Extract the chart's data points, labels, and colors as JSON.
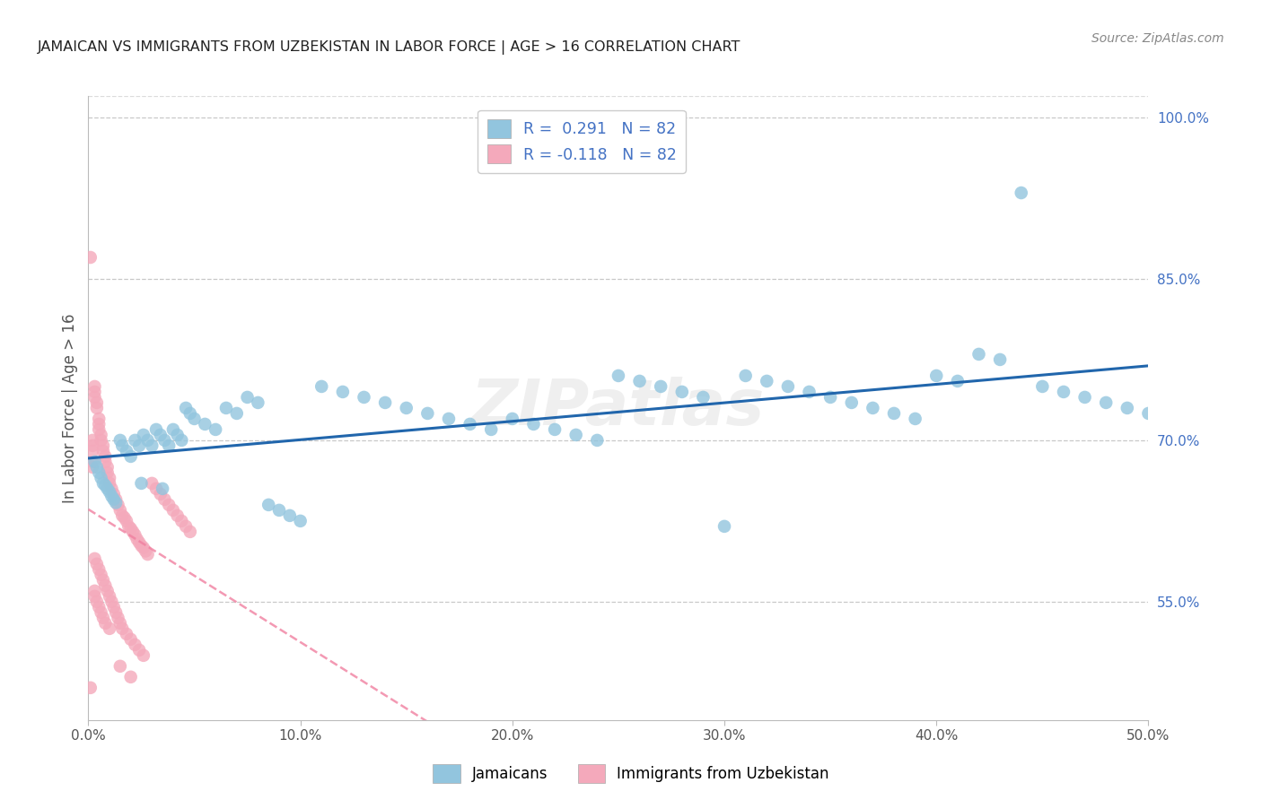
{
  "title": "JAMAICAN VS IMMIGRANTS FROM UZBEKISTAN IN LABOR FORCE | AGE > 16 CORRELATION CHART",
  "source": "Source: ZipAtlas.com",
  "ylabel": "In Labor Force | Age > 16",
  "xlim": [
    0.0,
    0.5
  ],
  "ylim": [
    0.44,
    1.02
  ],
  "r_jamaican": 0.291,
  "n_jamaican": 82,
  "r_uzbekistan": -0.118,
  "n_uzbekistan": 82,
  "legend_label_blue": "Jamaicans",
  "legend_label_pink": "Immigrants from Uzbekistan",
  "dot_color_blue": "#92C5DE",
  "dot_color_pink": "#F4A9BB",
  "line_color_blue": "#2166AC",
  "line_color_pink": "#F4A9BB",
  "background_color": "#FFFFFF",
  "grid_color": "#BBBBBB",
  "blue_x": [
    0.003,
    0.004,
    0.005,
    0.006,
    0.007,
    0.008,
    0.009,
    0.01,
    0.011,
    0.012,
    0.013,
    0.015,
    0.016,
    0.018,
    0.02,
    0.022,
    0.024,
    0.026,
    0.028,
    0.03,
    0.032,
    0.034,
    0.036,
    0.038,
    0.04,
    0.042,
    0.044,
    0.046,
    0.048,
    0.05,
    0.055,
    0.06,
    0.065,
    0.07,
    0.075,
    0.08,
    0.085,
    0.09,
    0.095,
    0.1,
    0.11,
    0.12,
    0.13,
    0.14,
    0.15,
    0.16,
    0.17,
    0.18,
    0.19,
    0.2,
    0.21,
    0.22,
    0.23,
    0.24,
    0.25,
    0.26,
    0.27,
    0.28,
    0.29,
    0.3,
    0.31,
    0.32,
    0.33,
    0.34,
    0.35,
    0.36,
    0.37,
    0.38,
    0.39,
    0.4,
    0.41,
    0.42,
    0.43,
    0.44,
    0.45,
    0.46,
    0.47,
    0.48,
    0.49,
    0.5,
    0.025,
    0.035
  ],
  "blue_y": [
    0.68,
    0.675,
    0.67,
    0.665,
    0.66,
    0.658,
    0.655,
    0.652,
    0.648,
    0.645,
    0.642,
    0.7,
    0.695,
    0.69,
    0.685,
    0.7,
    0.695,
    0.705,
    0.7,
    0.695,
    0.71,
    0.705,
    0.7,
    0.695,
    0.71,
    0.705,
    0.7,
    0.73,
    0.725,
    0.72,
    0.715,
    0.71,
    0.73,
    0.725,
    0.74,
    0.735,
    0.64,
    0.635,
    0.63,
    0.625,
    0.75,
    0.745,
    0.74,
    0.735,
    0.73,
    0.725,
    0.72,
    0.715,
    0.71,
    0.72,
    0.715,
    0.71,
    0.705,
    0.7,
    0.76,
    0.755,
    0.75,
    0.745,
    0.74,
    0.62,
    0.76,
    0.755,
    0.75,
    0.745,
    0.74,
    0.735,
    0.73,
    0.725,
    0.72,
    0.76,
    0.755,
    0.78,
    0.775,
    0.93,
    0.75,
    0.745,
    0.74,
    0.735,
    0.73,
    0.725,
    0.66,
    0.655
  ],
  "pink_x": [
    0.001,
    0.002,
    0.002,
    0.002,
    0.003,
    0.003,
    0.003,
    0.004,
    0.004,
    0.005,
    0.005,
    0.005,
    0.006,
    0.006,
    0.007,
    0.007,
    0.008,
    0.008,
    0.009,
    0.009,
    0.01,
    0.01,
    0.011,
    0.012,
    0.013,
    0.014,
    0.015,
    0.016,
    0.017,
    0.018,
    0.019,
    0.02,
    0.021,
    0.022,
    0.023,
    0.024,
    0.025,
    0.026,
    0.027,
    0.028,
    0.03,
    0.032,
    0.034,
    0.036,
    0.038,
    0.04,
    0.042,
    0.044,
    0.046,
    0.048,
    0.003,
    0.004,
    0.005,
    0.006,
    0.007,
    0.008,
    0.009,
    0.01,
    0.011,
    0.012,
    0.013,
    0.014,
    0.015,
    0.016,
    0.018,
    0.02,
    0.022,
    0.024,
    0.026,
    0.002,
    0.002,
    0.003,
    0.003,
    0.004,
    0.005,
    0.006,
    0.007,
    0.008,
    0.01,
    0.015,
    0.02,
    0.001
  ],
  "pink_y": [
    0.87,
    0.7,
    0.695,
    0.69,
    0.75,
    0.745,
    0.74,
    0.735,
    0.73,
    0.72,
    0.715,
    0.71,
    0.705,
    0.7,
    0.695,
    0.69,
    0.685,
    0.68,
    0.675,
    0.67,
    0.665,
    0.66,
    0.655,
    0.65,
    0.645,
    0.64,
    0.635,
    0.63,
    0.628,
    0.625,
    0.62,
    0.618,
    0.615,
    0.612,
    0.608,
    0.605,
    0.602,
    0.6,
    0.597,
    0.594,
    0.66,
    0.655,
    0.65,
    0.645,
    0.64,
    0.635,
    0.63,
    0.625,
    0.62,
    0.615,
    0.59,
    0.585,
    0.58,
    0.575,
    0.57,
    0.565,
    0.56,
    0.555,
    0.55,
    0.545,
    0.54,
    0.535,
    0.53,
    0.525,
    0.52,
    0.515,
    0.51,
    0.505,
    0.5,
    0.68,
    0.675,
    0.56,
    0.555,
    0.55,
    0.545,
    0.54,
    0.535,
    0.53,
    0.525,
    0.49,
    0.48,
    0.47
  ]
}
